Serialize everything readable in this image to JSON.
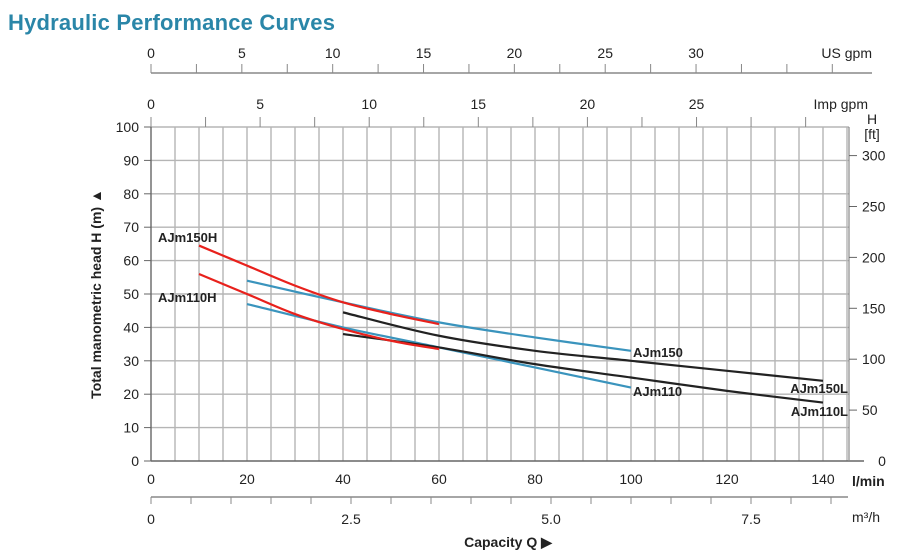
{
  "title": "Hydraulic Performance Curves",
  "chart_data": {
    "type": "line",
    "title": "Hydraulic Performance Curves",
    "xlabel": "Capacity Q",
    "ylabel": "Total manometric head H (m)",
    "xlim": [
      0,
      145
    ],
    "ylim": [
      0,
      100
    ],
    "grid": true,
    "x_unit": "l/min",
    "y_unit_right": "H [ft]",
    "x_ticks": [
      0,
      20,
      40,
      60,
      80,
      100,
      120,
      140
    ],
    "y_ticks": [
      0,
      10,
      20,
      30,
      40,
      50,
      60,
      70,
      80,
      90,
      100
    ],
    "secondary_axes": {
      "us_gpm": {
        "label": "US gpm",
        "ticks": [
          "0",
          "5",
          "10",
          "15",
          "20",
          "25",
          "30"
        ]
      },
      "imp_gpm": {
        "label": "Imp gpm",
        "ticks": [
          "0",
          "5",
          "10",
          "15",
          "20",
          "25"
        ]
      },
      "ft": {
        "label_h": "H",
        "label_unit": "[ft]",
        "ticks": [
          "0",
          "50",
          "100",
          "150",
          "200",
          "250",
          "300"
        ]
      },
      "m3h": {
        "label": "m³/h",
        "ticks": [
          "0",
          "2.5",
          "5.0",
          "7.5"
        ]
      }
    },
    "series": [
      {
        "name": "AJm150H",
        "color": "#e8211c",
        "x": [
          10,
          20,
          30,
          40,
          50,
          60
        ],
        "y": [
          64.5,
          58.5,
          52.5,
          47.5,
          44,
          41
        ]
      },
      {
        "name": "AJm110H",
        "color": "#e8211c",
        "x": [
          10,
          20,
          30,
          40,
          50,
          60
        ],
        "y": [
          56,
          50,
          44,
          39.5,
          36,
          33.5
        ]
      },
      {
        "name": "AJm150",
        "color": "#3a94bd",
        "x": [
          20,
          40,
          60,
          80,
          100
        ],
        "y": [
          54,
          47.5,
          41.5,
          37,
          33
        ]
      },
      {
        "name": "AJm110",
        "color": "#3a94bd",
        "x": [
          20,
          40,
          60,
          80,
          100
        ],
        "y": [
          47,
          40,
          34,
          28,
          22
        ]
      },
      {
        "name": "AJm150L",
        "color": "#222222",
        "x": [
          40,
          60,
          80,
          100,
          120,
          140
        ],
        "y": [
          44.5,
          37.5,
          33,
          30,
          27,
          24
        ]
      },
      {
        "name": "AJm110L",
        "color": "#222222",
        "x": [
          40,
          60,
          80,
          100,
          120,
          140
        ],
        "y": [
          38,
          34,
          29,
          25,
          21,
          17.5
        ]
      }
    ]
  }
}
